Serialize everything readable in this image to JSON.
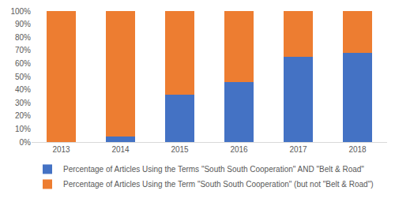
{
  "chart_data": {
    "type": "bar",
    "stacked": true,
    "legend": "bottom",
    "grid": false,
    "categories": [
      "2013",
      "2014",
      "2015",
      "2016",
      "2017",
      "2018"
    ],
    "series": [
      {
        "name": "Percentage of Articles Using the Terms \"South South Cooperation\" AND \"Belt & Road\"",
        "color": "#4472c4",
        "values": [
          0,
          4,
          36,
          46,
          65,
          68
        ]
      },
      {
        "name": "Percentage of Articles Using the Term \"South South Cooperation\" (but not \"Belt & Road\")",
        "color": "#ed7d31",
        "values": [
          100,
          96,
          64,
          54,
          35,
          32
        ]
      }
    ],
    "ylim": [
      0,
      100
    ],
    "yticks": [
      {
        "value": 0,
        "label": "0%"
      },
      {
        "value": 10,
        "label": "10%"
      },
      {
        "value": 20,
        "label": "20%"
      },
      {
        "value": 30,
        "label": "30%"
      },
      {
        "value": 40,
        "label": "40%"
      },
      {
        "value": 50,
        "label": "50%"
      },
      {
        "value": 60,
        "label": "60%"
      },
      {
        "value": 70,
        "label": "70%"
      },
      {
        "value": 80,
        "label": "80%"
      },
      {
        "value": 90,
        "label": "90%"
      },
      {
        "value": 100,
        "label": "100%"
      }
    ]
  }
}
